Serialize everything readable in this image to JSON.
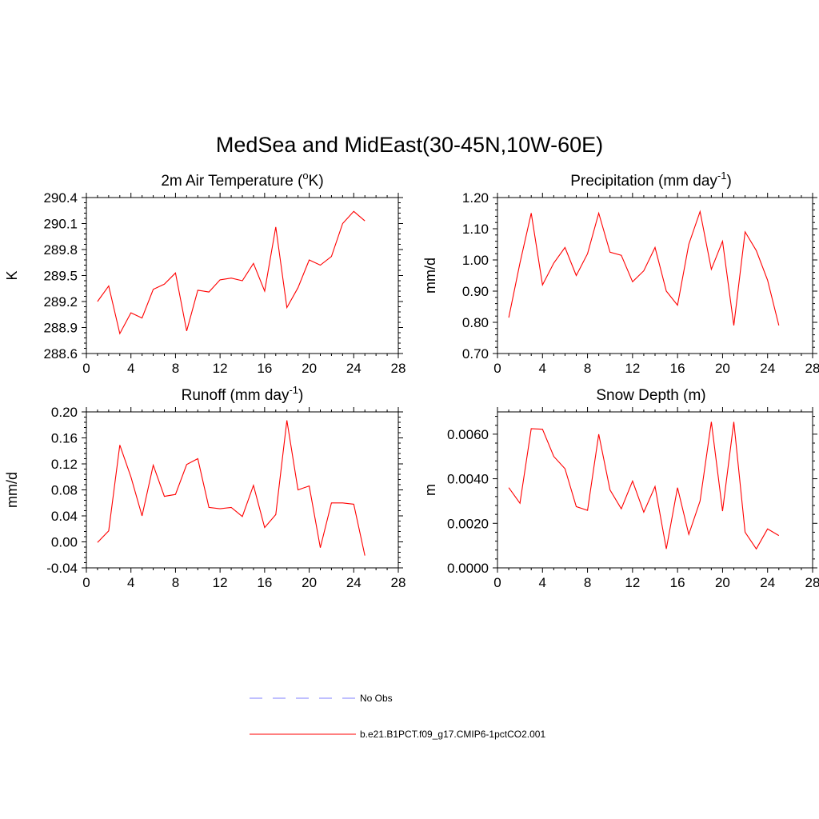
{
  "figure": {
    "title": "MedSea and MidEast(30-45N,10W-60E)"
  },
  "chart_data": [
    {
      "type": "line",
      "title": "2m Air Temperature (oK)",
      "title_parts": {
        "pre": "2m Air Temperature (",
        "sup": "o",
        "post": "K)"
      },
      "ylabel": "K",
      "xlim": [
        0,
        28
      ],
      "xticks": [
        0,
        4,
        8,
        12,
        16,
        20,
        24,
        28
      ],
      "ylim": [
        288.6,
        290.4
      ],
      "yticks": [
        288.6,
        288.9,
        289.2,
        289.5,
        289.8,
        290.1,
        290.4
      ],
      "ytick_labels": [
        "288.6",
        "288.9",
        "289.2",
        "289.5",
        "289.8",
        "290.1",
        "290.4"
      ],
      "color": "#ff0000",
      "series": [
        {
          "name": "b.e21.B1PCT.f09_g17.CMIP6-1pctCO2.001",
          "x": [
            1,
            2,
            3,
            4,
            5,
            6,
            7,
            8,
            9,
            10,
            11,
            12,
            13,
            14,
            15,
            16,
            17,
            18,
            19,
            20,
            21,
            22,
            23,
            24,
            25
          ],
          "y": [
            289.2,
            289.38,
            288.83,
            289.07,
            289.01,
            289.34,
            289.4,
            289.53,
            288.86,
            289.33,
            289.31,
            289.45,
            289.47,
            289.44,
            289.64,
            289.32,
            290.06,
            289.13,
            289.36,
            289.68,
            289.62,
            289.72,
            290.1,
            290.24,
            290.13
          ]
        }
      ]
    },
    {
      "type": "line",
      "title": "Precipitation (mm day-1)",
      "title_parts": {
        "pre": "Precipitation (mm day",
        "sup": "-1",
        "post": ")"
      },
      "ylabel": "mm/d",
      "xlim": [
        0,
        28
      ],
      "xticks": [
        0,
        4,
        8,
        12,
        16,
        20,
        24,
        28
      ],
      "ylim": [
        0.7,
        1.2
      ],
      "yticks": [
        0.7,
        0.8,
        0.9,
        1.0,
        1.1,
        1.2
      ],
      "ytick_labels": [
        "0.70",
        "0.80",
        "0.90",
        "1.00",
        "1.10",
        "1.20"
      ],
      "color": "#ff0000",
      "series": [
        {
          "name": "b.e21.B1PCT.f09_g17.CMIP6-1pctCO2.001",
          "x": [
            1,
            2,
            3,
            4,
            5,
            6,
            7,
            8,
            9,
            10,
            11,
            12,
            13,
            14,
            15,
            16,
            17,
            18,
            19,
            20,
            21,
            22,
            23,
            24,
            25
          ],
          "y": [
            0.815,
            0.99,
            1.15,
            0.92,
            0.99,
            1.04,
            0.95,
            1.02,
            1.15,
            1.025,
            1.015,
            0.93,
            0.965,
            1.04,
            0.9,
            0.855,
            1.05,
            1.155,
            0.97,
            1.06,
            0.79,
            1.09,
            1.03,
            0.935,
            0.79
          ]
        }
      ]
    },
    {
      "type": "line",
      "title": "Runoff (mm day-1)",
      "title_parts": {
        "pre": "Runoff (mm day",
        "sup": "-1",
        "post": ")"
      },
      "ylabel": "mm/d",
      "xlim": [
        0,
        28
      ],
      "xticks": [
        0,
        4,
        8,
        12,
        16,
        20,
        24,
        28
      ],
      "ylim": [
        -0.04,
        0.2
      ],
      "yticks": [
        -0.04,
        0.0,
        0.04,
        0.08,
        0.12,
        0.16,
        0.2
      ],
      "ytick_labels": [
        "-0.04",
        "0.00",
        "0.04",
        "0.08",
        "0.12",
        "0.16",
        "0.20"
      ],
      "color": "#ff0000",
      "series": [
        {
          "name": "b.e21.B1PCT.f09_g17.CMIP6-1pctCO2.001",
          "x": [
            1,
            2,
            3,
            4,
            5,
            6,
            7,
            8,
            9,
            10,
            11,
            12,
            13,
            14,
            15,
            16,
            17,
            18,
            19,
            20,
            21,
            22,
            23,
            24,
            25
          ],
          "y": [
            -0.001,
            0.017,
            0.149,
            0.1,
            0.04,
            0.118,
            0.07,
            0.073,
            0.119,
            0.128,
            0.053,
            0.051,
            0.053,
            0.039,
            0.087,
            0.022,
            0.042,
            0.187,
            0.08,
            0.086,
            -0.009,
            0.06,
            0.06,
            0.058,
            -0.021
          ]
        }
      ]
    },
    {
      "type": "line",
      "title": "Snow Depth (m)",
      "title_parts": {
        "pre": "Snow Depth (m)",
        "sup": "",
        "post": ""
      },
      "ylabel": "m",
      "xlim": [
        0,
        28
      ],
      "xticks": [
        0,
        4,
        8,
        12,
        16,
        20,
        24,
        28
      ],
      "ylim": [
        0.0,
        0.007
      ],
      "yticks": [
        0.0,
        0.002,
        0.004,
        0.006
      ],
      "ytick_labels": [
        "0.0000",
        "0.0020",
        "0.0040",
        "0.0060"
      ],
      "color": "#ff0000",
      "series": [
        {
          "name": "b.e21.B1PCT.f09_g17.CMIP6-1pctCO2.001",
          "x": [
            1,
            2,
            3,
            4,
            5,
            6,
            7,
            8,
            9,
            10,
            11,
            12,
            13,
            14,
            15,
            16,
            17,
            18,
            19,
            20,
            21,
            22,
            23,
            24,
            25
          ],
          "y": [
            0.0036,
            0.0029,
            0.00625,
            0.00622,
            0.005,
            0.00445,
            0.00275,
            0.00258,
            0.006,
            0.0035,
            0.00265,
            0.0039,
            0.0025,
            0.00365,
            0.00085,
            0.0036,
            0.0015,
            0.003,
            0.00655,
            0.00255,
            0.00655,
            0.0016,
            0.00085,
            0.00175,
            0.00145
          ]
        }
      ]
    }
  ],
  "legend": {
    "items": [
      {
        "label": "No Obs",
        "color": "#9999ff",
        "dash": true
      },
      {
        "label": "b.e21.B1PCT.f09_g17.CMIP6-1pctCO2.001",
        "color": "#ff0000",
        "dash": false
      }
    ]
  }
}
